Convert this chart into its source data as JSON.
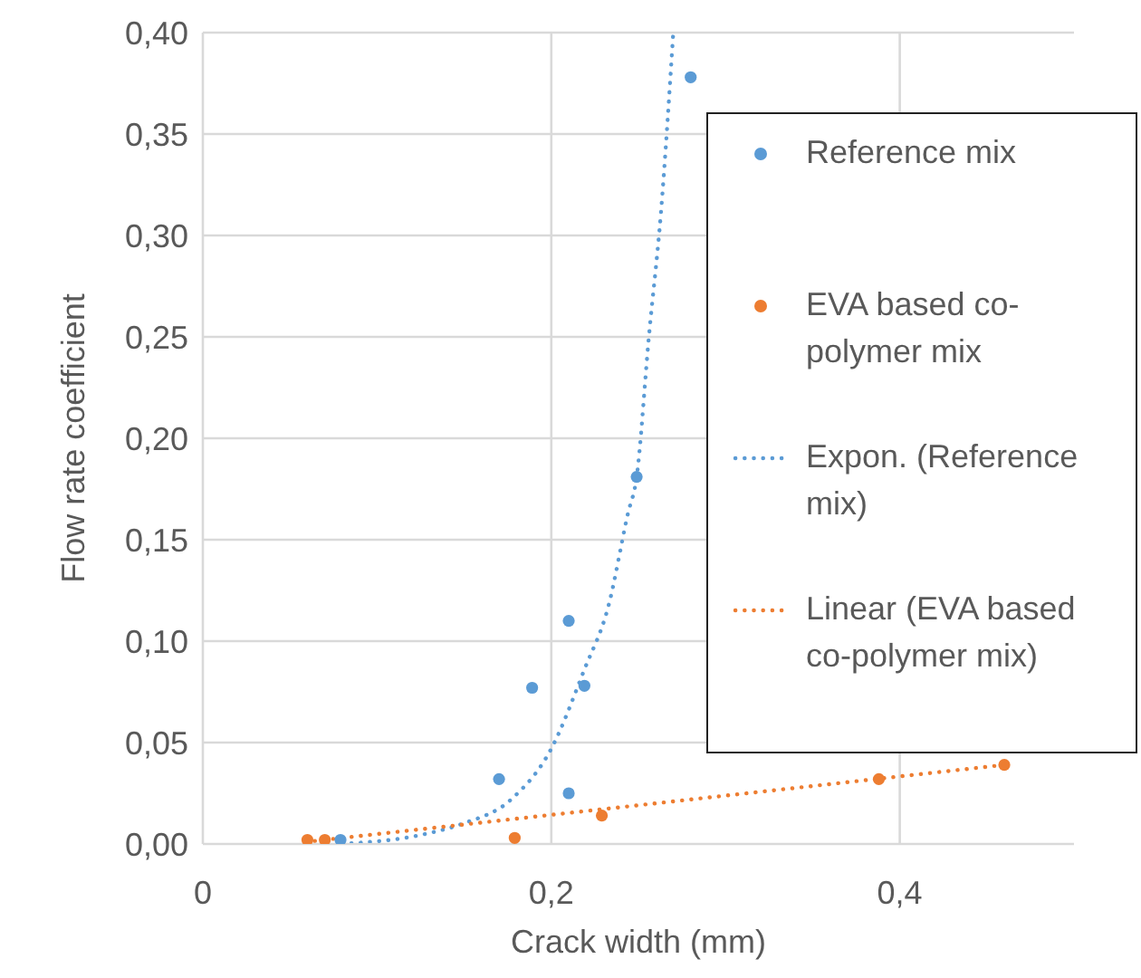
{
  "chart_data": {
    "type": "scatter",
    "xlabel": "Crack width (mm)",
    "ylabel": "Flow rate coefficient",
    "xlim": [
      0,
      0.5
    ],
    "xticks": [
      0,
      {
        "value": 0.2,
        "label": "0,2"
      },
      {
        "value": 0.4,
        "label": "0,4"
      }
    ],
    "ylim": [
      0,
      0.4
    ],
    "yticks": [
      {
        "value": 0,
        "label": "0,00"
      },
      {
        "value": 0.05,
        "label": "0,05"
      },
      {
        "value": 0.1,
        "label": "0,10"
      },
      {
        "value": 0.15,
        "label": "0,15"
      },
      {
        "value": 0.2,
        "label": "0,20"
      },
      {
        "value": 0.25,
        "label": "0,25"
      },
      {
        "value": 0.3,
        "label": "0,30"
      },
      {
        "value": 0.35,
        "label": "0,35"
      },
      {
        "value": 0.4,
        "label": "0,40"
      }
    ],
    "grid": true,
    "legend": "right",
    "marker": "circle",
    "series": [
      {
        "name": "Reference mix",
        "color": "#5b9bd5",
        "x": [
          0.079,
          0.17,
          0.189,
          0.21,
          0.21,
          0.219,
          0.249,
          0.28
        ],
        "values": [
          0.002,
          0.032,
          0.077,
          0.11,
          0.025,
          0.078,
          0.181,
          0.378
        ]
      },
      {
        "name": "EVA based co-polymer mix",
        "color": "#ed7d31",
        "x": [
          0.06,
          0.07,
          0.179,
          0.229,
          0.388,
          0.46
        ],
        "values": [
          0.002,
          0.002,
          0.003,
          0.014,
          0.032,
          0.039
        ]
      },
      {
        "name": "Expon. (Reference mix)",
        "type": "line",
        "color": "#5b9bd5",
        "line_style": "dotted",
        "marker": "none",
        "x": [
          0.08,
          0.128,
          0.149,
          0.177,
          0.2,
          0.219,
          0.233,
          0.244,
          0.249,
          0.256,
          0.263,
          0.27
        ],
        "values": [
          0.0,
          0.005,
          0.01,
          0.022,
          0.047,
          0.086,
          0.118,
          0.163,
          0.181,
          0.25,
          0.312,
          0.4
        ]
      },
      {
        "name": "Linear (EVA based co-polymer mix)",
        "type": "line",
        "color": "#ed7d31",
        "line_style": "dotted",
        "marker": "none",
        "x": [
          0.059,
          0.46
        ],
        "values": [
          0.001,
          0.039
        ]
      }
    ]
  }
}
